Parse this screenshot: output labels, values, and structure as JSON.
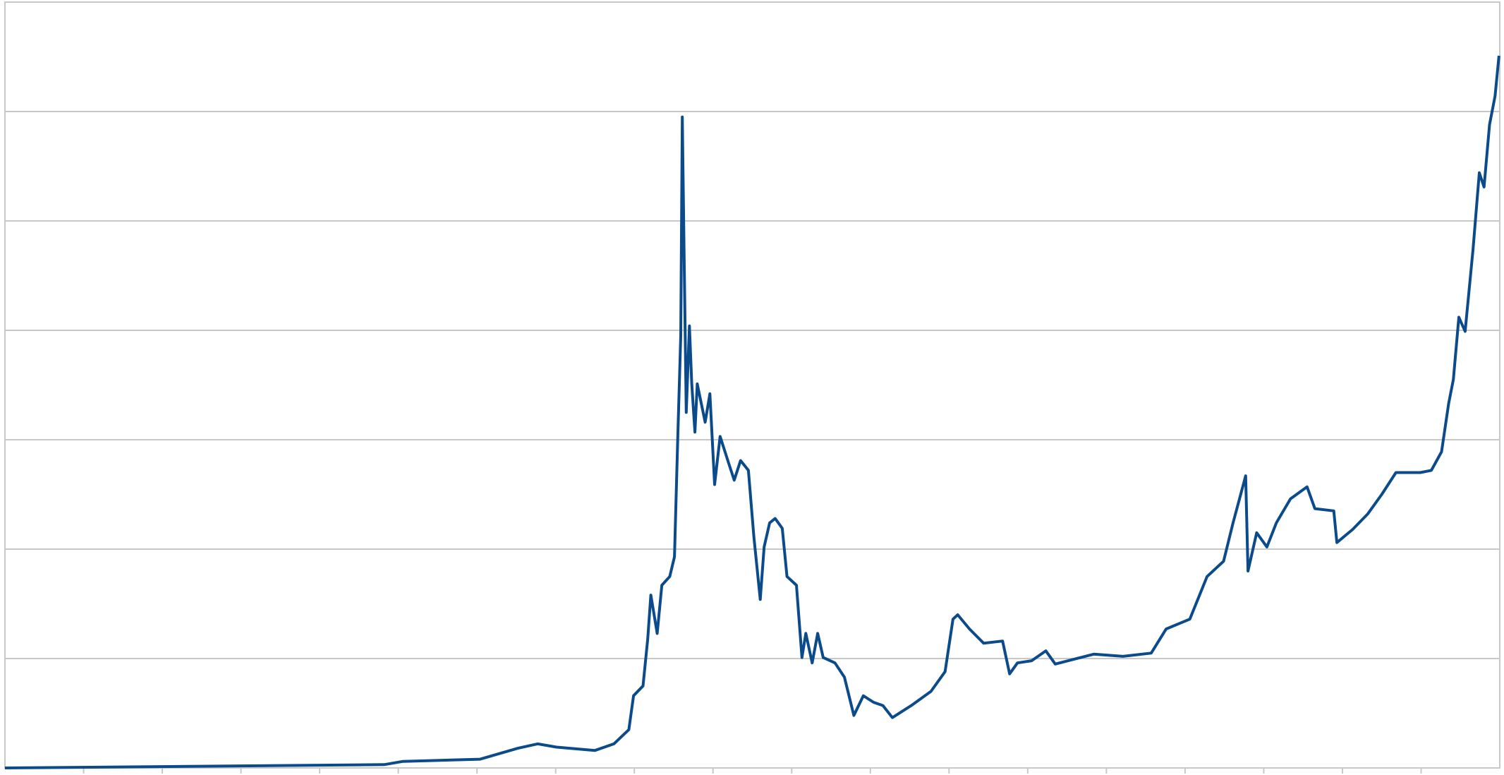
{
  "chart_data": {
    "type": "line",
    "x": [
      0,
      3.23,
      4.82,
      5.06,
      6.04,
      6.52,
      6.77,
      7.01,
      7.5,
      7.74,
      7.93,
      7.99,
      8.11,
      8.17,
      8.21,
      8.29,
      8.35,
      8.45,
      8.51,
      8.55,
      8.59,
      8.61,
      8.63,
      8.66,
      8.7,
      8.73,
      8.77,
      8.8,
      8.9,
      8.96,
      9.02,
      9.09,
      9.21,
      9.27,
      9.35,
      9.45,
      9.52,
      9.6,
      9.65,
      9.72,
      9.79,
      9.88,
      9.94,
      10.06,
      10.13,
      10.18,
      10.26,
      10.33,
      10.4,
      10.55,
      10.67,
      10.79,
      10.91,
      11.04,
      11.16,
      11.28,
      11.52,
      11.77,
      11.95,
      12.05,
      12.11,
      12.26,
      12.44,
      12.68,
      12.77,
      12.87,
      13.05,
      13.23,
      13.35,
      13.84,
      14.21,
      14.57,
      14.76,
      15.06,
      15.28,
      15.49,
      15.61,
      15.77,
      15.8,
      15.91,
      16.04,
      16.16,
      16.34,
      16.55,
      16.65,
      16.89,
      16.93,
      17.13,
      17.32,
      17.5,
      17.68,
      17.99,
      18.13,
      18.26,
      18.35,
      18.41,
      18.48,
      18.56,
      18.66,
      18.74,
      18.8,
      18.87,
      18.94,
      18.99
    ],
    "series": [
      {
        "color": "#0b4a8b",
        "values": [
          0,
          0.02,
          0.03,
          0.06,
          0.08,
          0.18,
          0.22,
          0.19,
          0.16,
          0.22,
          0.35,
          0.66,
          0.75,
          1.18,
          1.58,
          1.23,
          1.67,
          1.75,
          1.93,
          2.98,
          3.95,
          5.95,
          4.82,
          3.25,
          4.04,
          3.51,
          3.07,
          3.51,
          3.16,
          3.42,
          2.59,
          3.03,
          2.76,
          2.63,
          2.81,
          2.72,
          2.11,
          1.54,
          2.02,
          2.24,
          2.28,
          2.19,
          1.75,
          1.67,
          1.01,
          1.23,
          0.96,
          1.23,
          1.01,
          0.96,
          0.83,
          0.48,
          0.66,
          0.6,
          0.57,
          0.46,
          0.57,
          0.7,
          0.88,
          1.36,
          1.4,
          1.27,
          1.14,
          1.16,
          0.86,
          0.96,
          0.98,
          1.07,
          0.95,
          1.04,
          1.02,
          1.05,
          1.27,
          1.36,
          1.75,
          1.89,
          2.24,
          2.67,
          1.8,
          2.15,
          2.02,
          2.24,
          2.46,
          2.57,
          2.37,
          2.35,
          2.06,
          2.18,
          2.32,
          2.5,
          2.7,
          2.7,
          2.72,
          2.89,
          3.33,
          3.55,
          4.12,
          3.99,
          4.74,
          5.44,
          5.31,
          5.88,
          6.14,
          6.51
        ]
      }
    ],
    "xlim": [
      0,
      19
    ],
    "xticks": [
      1,
      2,
      3,
      4,
      5,
      6,
      7,
      8,
      9,
      10,
      11,
      12,
      13,
      14,
      15,
      16,
      17,
      18
    ],
    "ylim": [
      0,
      7
    ],
    "yticks": [
      1,
      2,
      3,
      4,
      5,
      6
    ],
    "grid": true
  }
}
